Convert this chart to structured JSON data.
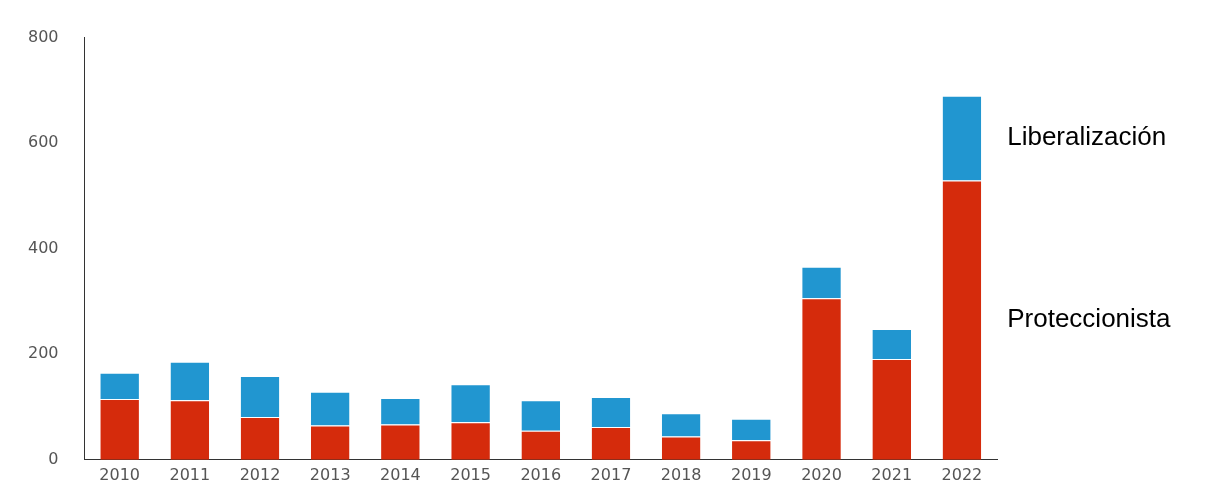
{
  "chart_data": {
    "type": "bar",
    "stacked": true,
    "categories": [
      "2010",
      "2011",
      "2012",
      "2013",
      "2014",
      "2015",
      "2016",
      "2017",
      "2018",
      "2019",
      "2020",
      "2021",
      "2022"
    ],
    "series": [
      {
        "name": "Proteccionista",
        "color": "#d52b0c",
        "values": [
          115,
          113,
          81,
          65,
          67,
          71,
          55,
          62,
          44,
          37,
          306,
          191,
          529
        ]
      },
      {
        "name": "Liberalización",
        "color": "#2196d0",
        "values": [
          50,
          73,
          78,
          64,
          50,
          72,
          58,
          57,
          44,
          41,
          60,
          57,
          161
        ]
      }
    ],
    "ylim": [
      0,
      800
    ],
    "yticks": [
      0,
      200,
      400,
      600,
      800
    ],
    "grid": false,
    "legend": false
  }
}
